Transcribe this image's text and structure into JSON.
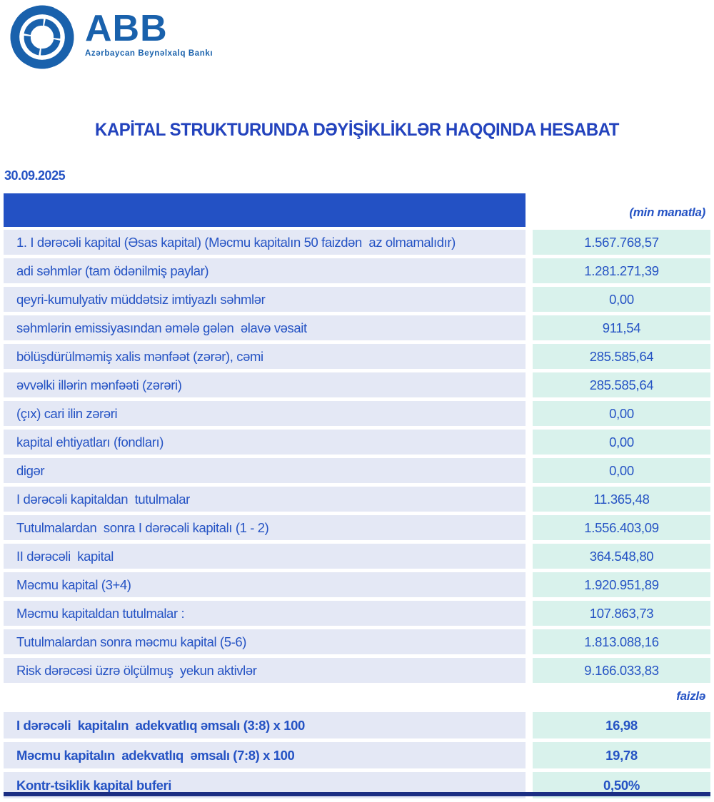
{
  "logo": {
    "abbr": "ABB",
    "tagline": "Azərbaycan Beynəlxalq Bankı",
    "color": "#1961ac"
  },
  "report": {
    "title": "KAPİTAL STRUKTURUNDA DƏYİŞİKLİKLƏR HAQQINDA HESABAT",
    "date": "30.09.2025"
  },
  "table": {
    "unit_note": "(min manatla)",
    "percent_note": "faizlə",
    "header_color": "#2351c4",
    "label_cell_color": "#e4e8f5",
    "value_cell_color": "#d9f2ec",
    "text_color": "#2553c4",
    "bottom_bar_color": "#1b2e83",
    "rows": [
      {
        "label": "1. I dərəcəli kapital (Əsas kapital) (Məcmu kapitalın 50 faizdən  az olmamalıdır)",
        "value": "1.567.768,57"
      },
      {
        "label": "adi səhmlər (tam ödənilmiş paylar)",
        "value": "1.281.271,39"
      },
      {
        "label": "qeyri-kumulyativ müddətsiz imtiyazlı səhmlər",
        "value": "0,00"
      },
      {
        "label": "səhmlərin emissiyasından əmələ gələn  əlavə vəsait",
        "value": "911,54"
      },
      {
        "label": "bölüşdürülməmiş xalis mənfəət (zərər), cəmi",
        "value": "285.585,64"
      },
      {
        "label": "əvvəlki illərin mənfəəti (zərəri)",
        "value": "285.585,64"
      },
      {
        "label": "(çıx) cari ilin zərəri",
        "value": "0,00"
      },
      {
        "label": "kapital ehtiyatları (fondları)",
        "value": "0,00"
      },
      {
        "label": "digər",
        "value": "0,00"
      },
      {
        "label": "I dərəcəli kapitaldan  tutulmalar",
        "value": "11.365,48"
      },
      {
        "label": "Tutulmalardan  sonra I dərəcəli kapitalı (1 - 2)",
        "value": "1.556.403,09"
      },
      {
        "label": "II dərəcəli  kapital",
        "value": "364.548,80"
      },
      {
        "label": "Məcmu kapital (3+4)",
        "value": "1.920.951,89"
      },
      {
        "label": "Məcmu kapitaldan tutulmalar :",
        "value": "107.863,73"
      },
      {
        "label": "Tutulmalardan sonra məcmu kapital (5-6)",
        "value": "1.813.088,16"
      },
      {
        "label": "Risk dərəcəsi üzrə ölçülmuş  yekun aktivlər",
        "value": "9.166.033,83"
      }
    ],
    "ratio_rows": [
      {
        "label": "I dərəcəli  kapitalın  adekvatlıq əmsalı (3:8) x 100",
        "value": "16,98"
      },
      {
        "label": "Məcmu kapitalın  adekvatlıq  əmsalı (7:8) x 100",
        "value": "19,78"
      },
      {
        "label": "Kontr-tsiklik kapital buferi",
        "value": "0,50%"
      }
    ]
  }
}
